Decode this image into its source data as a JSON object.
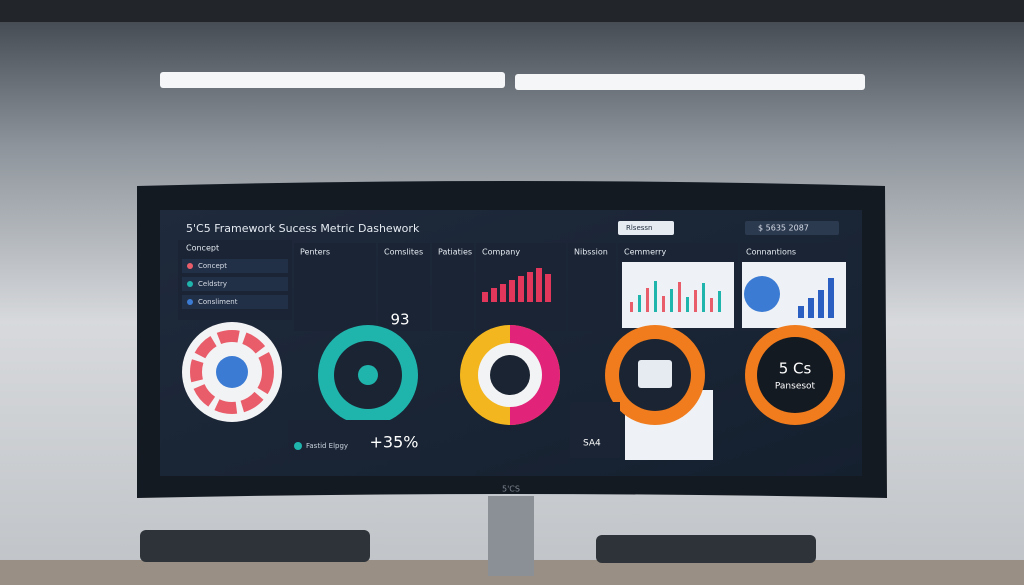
{
  "header": {
    "title": "5'C5 Framework Sucess Metric Dashework",
    "search": "Rlsessn",
    "account": "$ 5635 2087"
  },
  "sidebar": {
    "title": "Concept",
    "items": [
      "Concept",
      "Celdstry",
      "Consliment"
    ]
  },
  "panels": [
    "Penters",
    "Comslites",
    "Patiaties",
    "Company",
    "Nibssion",
    "Cemmerry",
    "Connantions"
  ],
  "stats": {
    "score": "93",
    "growth": "+35%",
    "growth_label": "Fastid Elpgy",
    "badge_title": "5 Cs",
    "badge_subtitle": "Pansesot",
    "small_value": "SA4"
  },
  "brand": "5'CS"
}
